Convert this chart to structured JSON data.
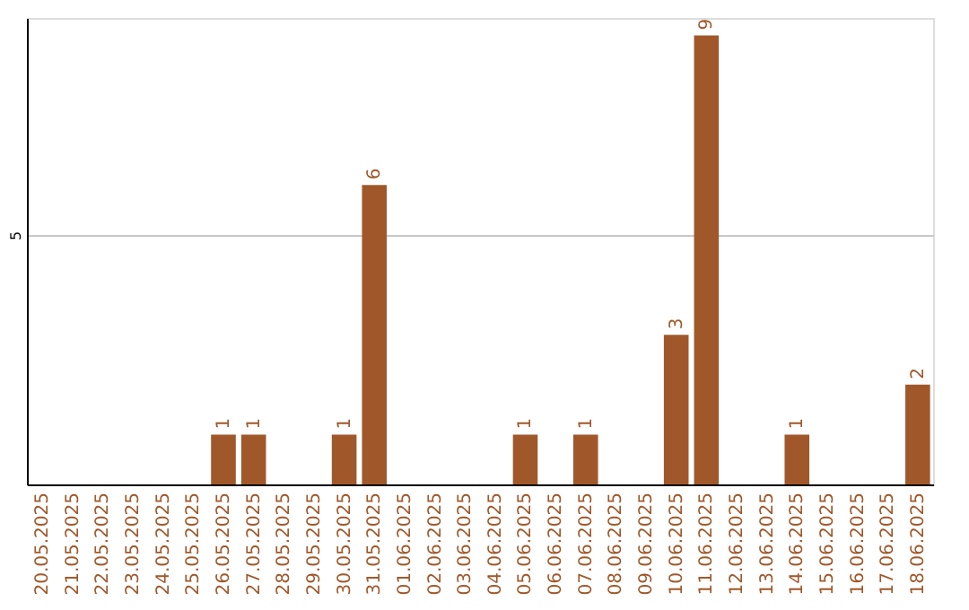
{
  "chart_data": {
    "type": "bar",
    "categories": [
      "20.05.2025",
      "21.05.2025",
      "22.05.2025",
      "23.05.2025",
      "24.05.2025",
      "25.05.2025",
      "26.05.2025",
      "27.05.2025",
      "28.05.2025",
      "29.05.2025",
      "30.05.2025",
      "31.05.2025",
      "01.06.2025",
      "02.06.2025",
      "03.06.2025",
      "04.06.2025",
      "05.06.2025",
      "06.06.2025",
      "07.06.2025",
      "08.06.2025",
      "09.06.2025",
      "10.06.2025",
      "11.06.2025",
      "12.06.2025",
      "13.06.2025",
      "14.06.2025",
      "15.06.2025",
      "16.06.2025",
      "17.06.2025",
      "18.06.2025"
    ],
    "values": [
      0,
      0,
      0,
      0,
      0,
      0,
      1,
      1,
      0,
      0,
      1,
      6,
      0,
      0,
      0,
      0,
      1,
      0,
      1,
      0,
      0,
      3,
      9,
      0,
      0,
      1,
      0,
      0,
      0,
      2
    ],
    "value_labels": [
      null,
      null,
      null,
      null,
      null,
      null,
      "1",
      "1",
      null,
      null,
      "1",
      "6",
      null,
      null,
      null,
      null,
      "1",
      null,
      "1",
      null,
      null,
      "3",
      "9",
      null,
      null,
      "1",
      null,
      null,
      null,
      "2"
    ],
    "color": "#a0582a",
    "ylim": [
      0,
      9.35
    ],
    "yticks": [
      5
    ],
    "grid": "y"
  }
}
